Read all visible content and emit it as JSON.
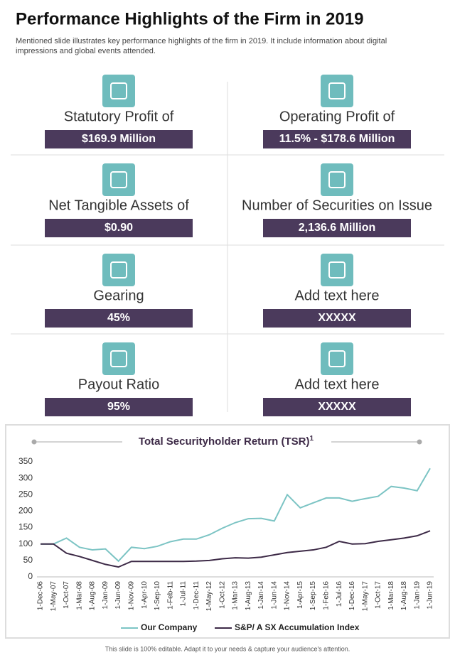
{
  "header": {
    "title": "Performance Highlights of the Firm in 2019",
    "subtitle": [
      "Mentioned slide illustrates  key performance  highlights of the firm in 2019. It include information about digital",
      "impressions and global events  attended."
    ]
  },
  "metrics": [
    {
      "label": "Statutory Profit of",
      "value": "$169.9 Million"
    },
    {
      "label": "Operating Profit of",
      "value": "11.5% - $178.6 Million"
    },
    {
      "label": "Net Tangible Assets  of",
      "value": "$0.90"
    },
    {
      "label": "Number of Securities on Issue",
      "value": "2,136.6 Million"
    },
    {
      "label": "Gearing",
      "value": "45%"
    },
    {
      "label": "Add text here",
      "value": "XXXXX"
    },
    {
      "label": "Payout Ratio",
      "value": "95%"
    },
    {
      "label": "Add text here",
      "value": "XXXXX"
    }
  ],
  "chart_data": {
    "type": "line",
    "title": "Total Securityholder Return (TSR)",
    "title_note": "1",
    "categories": [
      "1-Dec-06",
      "1-May-07",
      "1-Oct-07",
      "1-Mar-08",
      "1-Aug-08",
      "1-Jan-09",
      "1-Jun-09",
      "1-Nov-09",
      "1-Apr-10",
      "1-Sep-10",
      "1-Feb-11",
      "1-Jul-11",
      "1-Dec-11",
      "1-May-12",
      "1-Oct-12",
      "1-Mar-13",
      "1-Aug-13",
      "1-Jan-14",
      "1-Jun-14",
      "1-Nov-14",
      "1-Apr-15",
      "1-Sep-15",
      "1-Feb-16",
      "1-Jul-16",
      "1-Dec-16",
      "1-May-17",
      "1-Oct-17",
      "1-Mar-18",
      "1-Aug-18",
      "1-Jan-19",
      "1-Jun-19"
    ],
    "series": [
      {
        "name": "Our Company",
        "color": "#7cc4c4",
        "values": [
          100,
          100,
          118,
          90,
          82,
          85,
          48,
          90,
          86,
          93,
          107,
          115,
          115,
          128,
          148,
          165,
          177,
          178,
          170,
          250,
          210,
          225,
          240,
          240,
          230,
          238,
          245,
          275,
          270,
          262,
          330
        ]
      },
      {
        "name": "S&P/ A SX Accumulation Index",
        "color": "#3d2a47",
        "values": [
          100,
          100,
          72,
          62,
          50,
          38,
          30,
          47,
          47,
          47,
          47,
          47,
          48,
          50,
          55,
          58,
          57,
          60,
          67,
          74,
          78,
          82,
          90,
          108,
          100,
          101,
          108,
          113,
          118,
          125,
          140
        ]
      }
    ],
    "ylim": [
      0,
      350
    ],
    "yticks": [
      0,
      50,
      100,
      150,
      200,
      250,
      300,
      350
    ],
    "grid": false,
    "legend": "bottom"
  },
  "footer": "This slide is 100% editable. Adapt it to your needs & capture your audience's attention."
}
